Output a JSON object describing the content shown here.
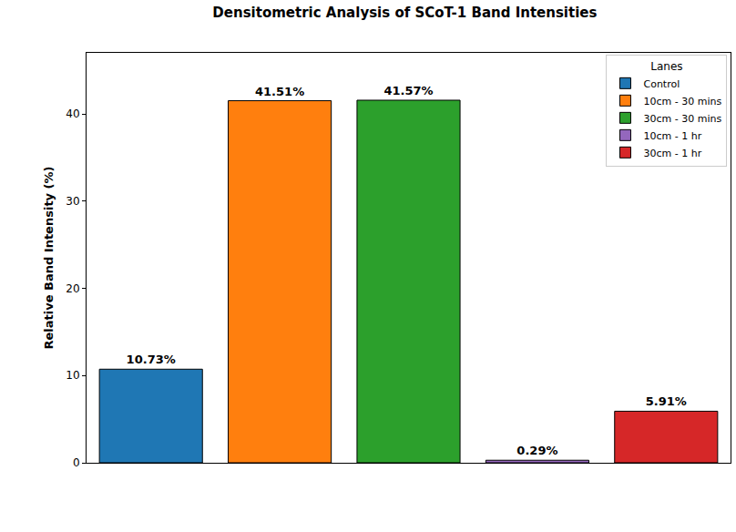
{
  "chart_data": {
    "type": "bar",
    "title": "Densitometric Analysis of SCoT-1 Band Intensities",
    "y_label": "Relative Band Intensity (%)",
    "categories": [
      "Control",
      "10cm - 30 mins",
      "30cm - 30 mins",
      "10cm - 1 hr",
      "30cm - 1 hr"
    ],
    "values": [
      10.73,
      41.51,
      41.57,
      0.29,
      5.91
    ],
    "value_labels": [
      "10.73%",
      "41.51%",
      "41.57%",
      "0.29%",
      "5.91%"
    ],
    "colors": [
      "#1f77b4",
      "#ff7f0e",
      "#2ca02c",
      "#9467bd",
      "#d62728"
    ],
    "ylim": [
      0,
      47
    ],
    "yticks": [
      0,
      10,
      20,
      30,
      40
    ],
    "grid": false,
    "data_labels": true,
    "tick_labels": "y",
    "legend": "upper right",
    "legend_title": "Lanes"
  }
}
